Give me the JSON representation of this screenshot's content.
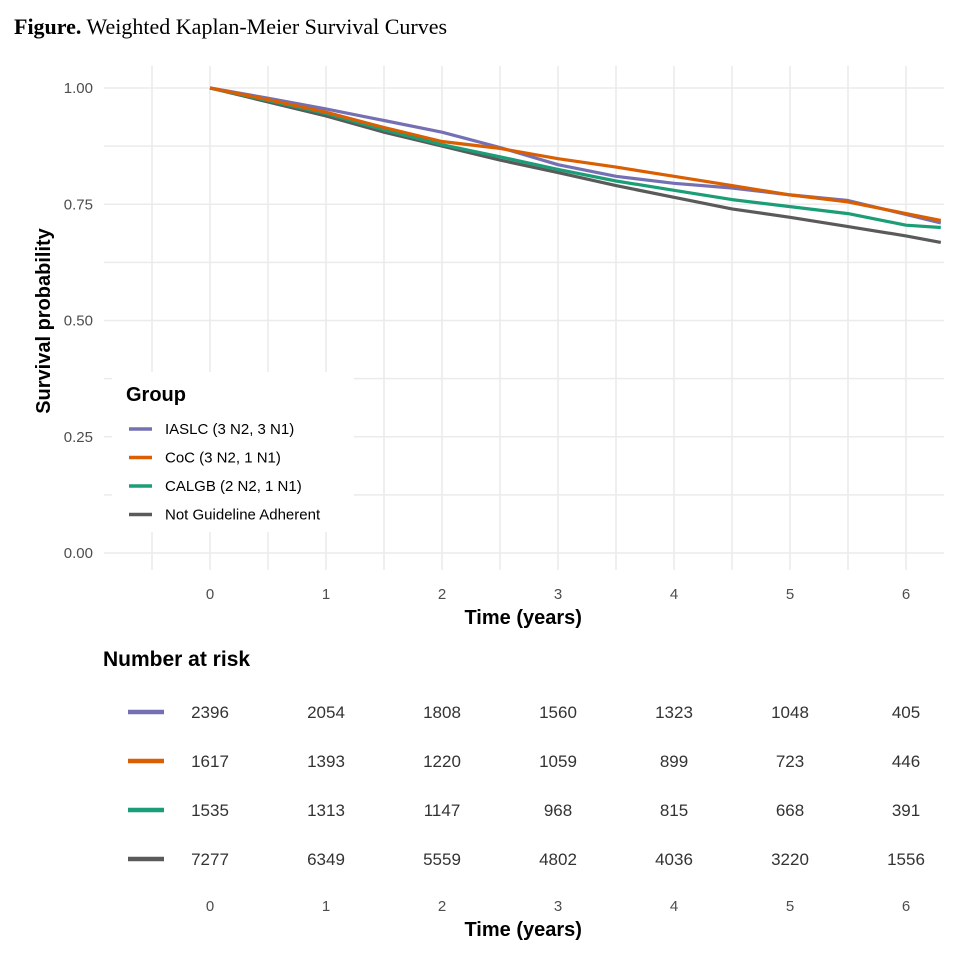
{
  "caption": {
    "bold": "Figure.",
    "text": "Weighted Kaplan-Meier Survival Curves"
  },
  "chart_data": {
    "type": "line",
    "title": "Weighted Kaplan-Meier Survival Curves",
    "xlabel": "Time (years)",
    "ylabel": "Survival probability",
    "xlim": [
      -0.9,
      6.3
    ],
    "ylim": [
      0,
      1
    ],
    "x_ticks": [
      0,
      1,
      2,
      3,
      4,
      5,
      6
    ],
    "y_ticks": [
      "0.00",
      "0.25",
      "0.50",
      "0.75",
      "1.00"
    ],
    "grid": true,
    "legend_title": "Group",
    "legend_position": "left-middle",
    "series": [
      {
        "name": "IASLC (3 N2, 3 N1)",
        "color": "#7570b3",
        "x": [
          0,
          0.5,
          1.0,
          1.5,
          2.0,
          2.5,
          3.0,
          3.5,
          4.0,
          4.5,
          5.0,
          5.5,
          6.0,
          6.3
        ],
        "y": [
          1.0,
          0.978,
          0.955,
          0.93,
          0.905,
          0.872,
          0.835,
          0.81,
          0.795,
          0.785,
          0.77,
          0.758,
          0.728,
          0.71
        ]
      },
      {
        "name": "CoC (3 N2, 1 N1)",
        "color": "#d95f02",
        "x": [
          0,
          0.5,
          1.0,
          1.5,
          2.0,
          2.5,
          3.0,
          3.5,
          4.0,
          4.5,
          5.0,
          5.5,
          6.0,
          6.3
        ],
        "y": [
          1.0,
          0.975,
          0.948,
          0.915,
          0.885,
          0.87,
          0.848,
          0.83,
          0.81,
          0.79,
          0.77,
          0.755,
          0.73,
          0.715
        ]
      },
      {
        "name": "CALGB (2 N2, 1 N1)",
        "color": "#1b9e77",
        "x": [
          0,
          0.5,
          1.0,
          1.5,
          2.0,
          2.5,
          3.0,
          3.5,
          4.0,
          4.5,
          5.0,
          5.5,
          6.0,
          6.3
        ],
        "y": [
          1.0,
          0.973,
          0.945,
          0.91,
          0.878,
          0.852,
          0.825,
          0.8,
          0.78,
          0.76,
          0.745,
          0.73,
          0.705,
          0.7
        ]
      },
      {
        "name": "Not Guideline Adherent",
        "color": "#5a5a5a",
        "x": [
          0,
          0.5,
          1.0,
          1.5,
          2.0,
          2.5,
          3.0,
          3.5,
          4.0,
          4.5,
          5.0,
          5.5,
          6.0,
          6.3
        ],
        "y": [
          1.0,
          0.97,
          0.94,
          0.905,
          0.875,
          0.845,
          0.818,
          0.79,
          0.765,
          0.74,
          0.722,
          0.702,
          0.682,
          0.668
        ]
      }
    ],
    "risk_table": {
      "title": "Number at risk",
      "xlabel": "Time (years)",
      "times": [
        0,
        1,
        2,
        3,
        4,
        5,
        6
      ],
      "rows": [
        {
          "color": "#7570b3",
          "values": [
            2396,
            2054,
            1808,
            1560,
            1323,
            1048,
            405
          ]
        },
        {
          "color": "#d95f02",
          "values": [
            1617,
            1393,
            1220,
            1059,
            899,
            723,
            446
          ]
        },
        {
          "color": "#1b9e77",
          "values": [
            1535,
            1313,
            1147,
            968,
            815,
            668,
            391
          ]
        },
        {
          "color": "#5a5a5a",
          "values": [
            7277,
            6349,
            5559,
            4802,
            4036,
            3220,
            1556
          ]
        }
      ]
    }
  }
}
